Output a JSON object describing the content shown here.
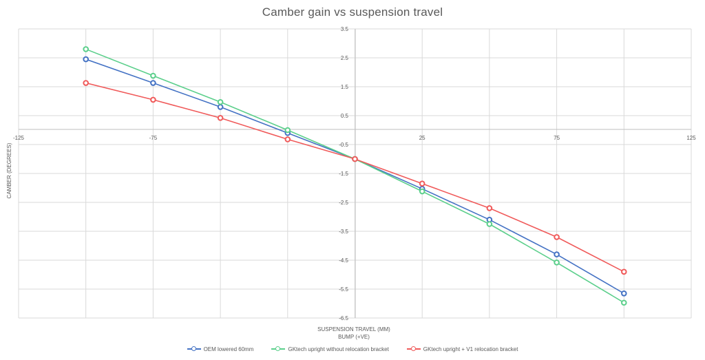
{
  "chart_data": {
    "type": "line",
    "title": "Camber gain vs suspension travel",
    "xlabel": "SUSPENSION TRAVEL (MM)",
    "xlabel2": "BUMP (+VE)",
    "ylabel": "CAMBER (DEGREES)",
    "xlim": [
      -125,
      125
    ],
    "ylim": [
      -6.5,
      3.5
    ],
    "x_ticks": [
      -125,
      -75,
      25,
      75,
      125
    ],
    "x_tick_labels": [
      "-125",
      "-75",
      "25",
      "75",
      "125"
    ],
    "y_ticks": [
      3.5,
      2.5,
      1.5,
      0.5,
      -0.5,
      -1.5,
      -2.5,
      -3.5,
      -4.5,
      -5.5,
      -6.5
    ],
    "y_tick_labels": [
      "3.5",
      "2.5",
      "1.5",
      "0.5",
      "-0.5",
      "-1.5",
      "-2.5",
      "-3.5",
      "-4.5",
      "-5.5",
      "-6.5"
    ],
    "grid": true,
    "legend_position": "bottom",
    "series": [
      {
        "name": "OEM lowered 60mm",
        "color": "#4472C4",
        "x": [
          -100,
          -75,
          -50,
          -25,
          0,
          25,
          50,
          75,
          100
        ],
        "y": [
          2.45,
          1.63,
          0.8,
          -0.1,
          -1.0,
          -2.03,
          -3.1,
          -4.3,
          -5.65
        ]
      },
      {
        "name": "GKtech upright without relocation bracket",
        "color": "#5BCF8B",
        "x": [
          -100,
          -75,
          -50,
          -25,
          0,
          25,
          50,
          75,
          100
        ],
        "y": [
          2.8,
          1.88,
          0.97,
          0.0,
          -1.0,
          -2.12,
          -3.25,
          -4.58,
          -5.97
        ]
      },
      {
        "name": "GKtech upright + V1 relocation bracket",
        "color": "#F05A5A",
        "x": [
          -100,
          -75,
          -50,
          -25,
          0,
          25,
          50,
          75,
          100
        ],
        "y": [
          1.63,
          1.05,
          0.42,
          -0.32,
          -1.0,
          -1.85,
          -2.7,
          -3.7,
          -4.9
        ]
      }
    ]
  }
}
